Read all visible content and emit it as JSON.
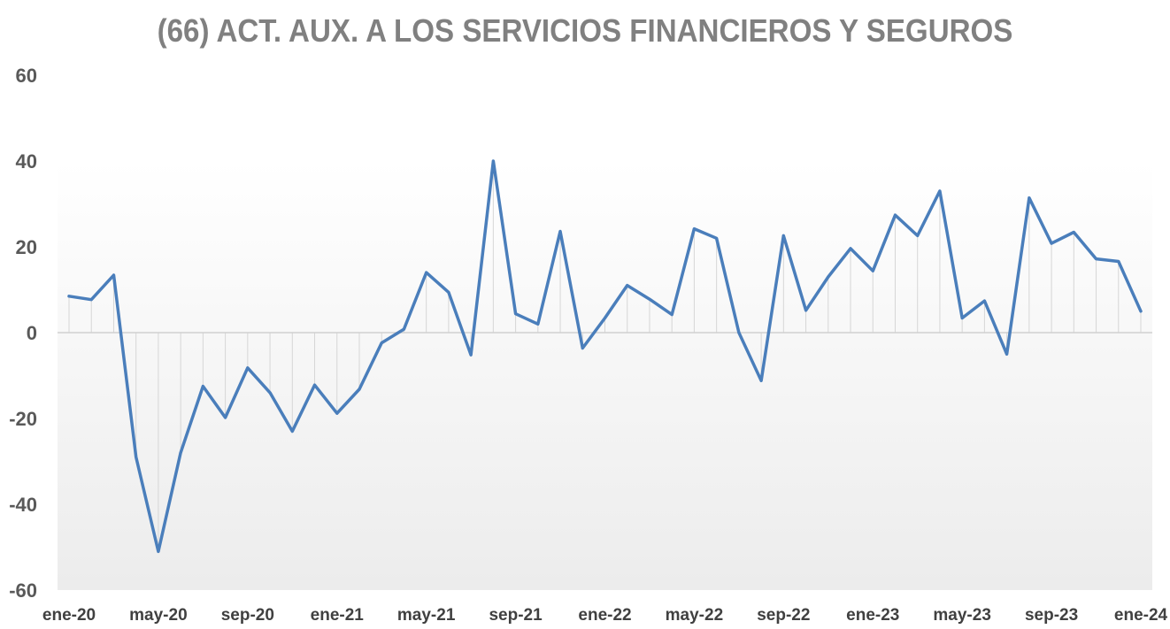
{
  "chart_data": {
    "type": "line",
    "title": "(66) ACT. AUX. A LOS SERVICIOS FINANCIEROS Y SEGUROS",
    "xlabel": "",
    "ylabel": "",
    "ylim": [
      -60,
      60
    ],
    "yticks": [
      60,
      40,
      20,
      0,
      -20,
      -40,
      -60
    ],
    "xtick_labels": [
      "ene-20",
      "may-20",
      "sep-20",
      "ene-21",
      "may-21",
      "sep-21",
      "ene-22",
      "may-22",
      "sep-22",
      "ene-23",
      "may-23",
      "sep-23",
      "ene-24"
    ],
    "x": [
      "ene-20",
      "feb-20",
      "mar-20",
      "abr-20",
      "may-20",
      "jun-20",
      "jul-20",
      "ago-20",
      "sep-20",
      "oct-20",
      "nov-20",
      "dic-20",
      "ene-21",
      "feb-21",
      "mar-21",
      "abr-21",
      "may-21",
      "jun-21",
      "jul-21",
      "ago-21",
      "sep-21",
      "oct-21",
      "nov-21",
      "dic-21",
      "ene-22",
      "feb-22",
      "mar-22",
      "abr-22",
      "may-22",
      "jun-22",
      "jul-22",
      "ago-22",
      "sep-22",
      "oct-22",
      "nov-22",
      "dic-22",
      "ene-23",
      "feb-23",
      "mar-23",
      "abr-23",
      "may-23",
      "jun-23",
      "jul-23",
      "ago-23",
      "sep-23",
      "oct-23",
      "nov-23",
      "dic-23",
      "ene-24"
    ],
    "series": [
      {
        "color": "#4a7ebb",
        "values": [
          8.5,
          7.7,
          13.4,
          -29,
          -51,
          -28,
          -12.5,
          -19.8,
          -8.2,
          -14,
          -23,
          -12.2,
          -18.8,
          -13.2,
          -2.4,
          0.8,
          14,
          9.4,
          -5.2,
          40,
          4.4,
          2,
          23.6,
          -3.6,
          3.4,
          11,
          7.8,
          4.2,
          24.2,
          22,
          0,
          -11.2,
          22.6,
          5.2,
          13,
          19.6,
          14.4,
          27.4,
          22.6,
          33,
          3.4,
          7.4,
          -5,
          31.4,
          20.8,
          23.4,
          17.2,
          16.6,
          5
        ]
      }
    ],
    "grid": false,
    "legend": "none",
    "drop_lines": true
  }
}
